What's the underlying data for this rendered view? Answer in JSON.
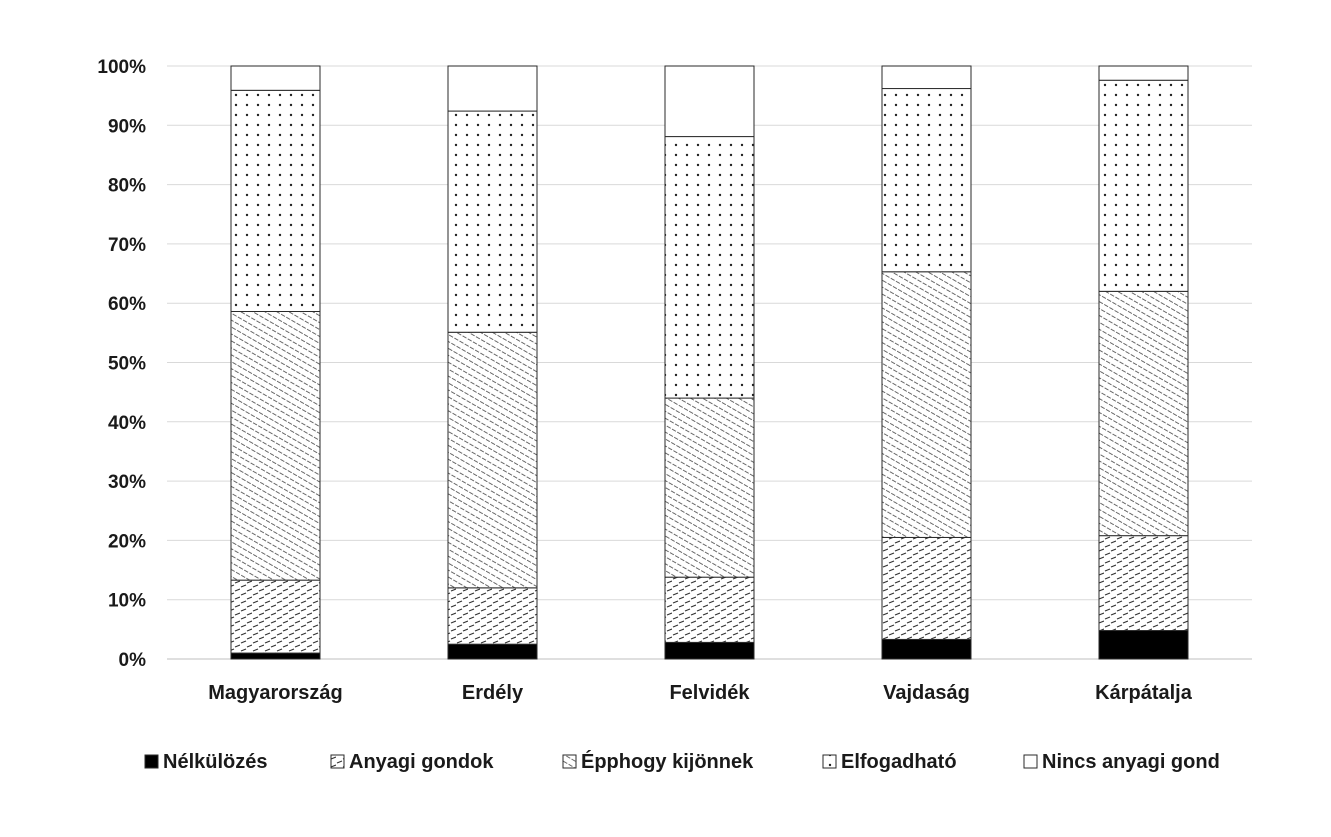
{
  "chart_data": {
    "type": "bar",
    "stacked": true,
    "normalized": true,
    "categories": [
      "Magyarország",
      "Erdély",
      "Felvidék",
      "Vajdaság",
      "Kárpátalja"
    ],
    "series": [
      {
        "name": "Nélkülözés",
        "values": [
          1.0,
          2.5,
          2.8,
          3.3,
          4.8
        ]
      },
      {
        "name": "Anyagi gondok",
        "values": [
          12.3,
          9.5,
          11.0,
          17.2,
          16.0
        ]
      },
      {
        "name": "Épphogy kijönnek",
        "values": [
          45.3,
          43.1,
          30.2,
          44.8,
          41.2
        ]
      },
      {
        "name": "Elfogadható",
        "values": [
          37.3,
          37.3,
          44.1,
          30.9,
          35.6
        ]
      },
      {
        "name": "Nincs anyagi gond",
        "values": [
          4.1,
          7.6,
          11.9,
          3.8,
          2.4
        ]
      }
    ],
    "ylim": [
      0,
      100
    ],
    "yticks": [
      "0%",
      "10%",
      "20%",
      "30%",
      "40%",
      "50%",
      "60%",
      "70%",
      "80%",
      "90%",
      "100%"
    ],
    "grid": true,
    "legend_position": "bottom",
    "title": "",
    "xlabel": "",
    "ylabel": ""
  }
}
